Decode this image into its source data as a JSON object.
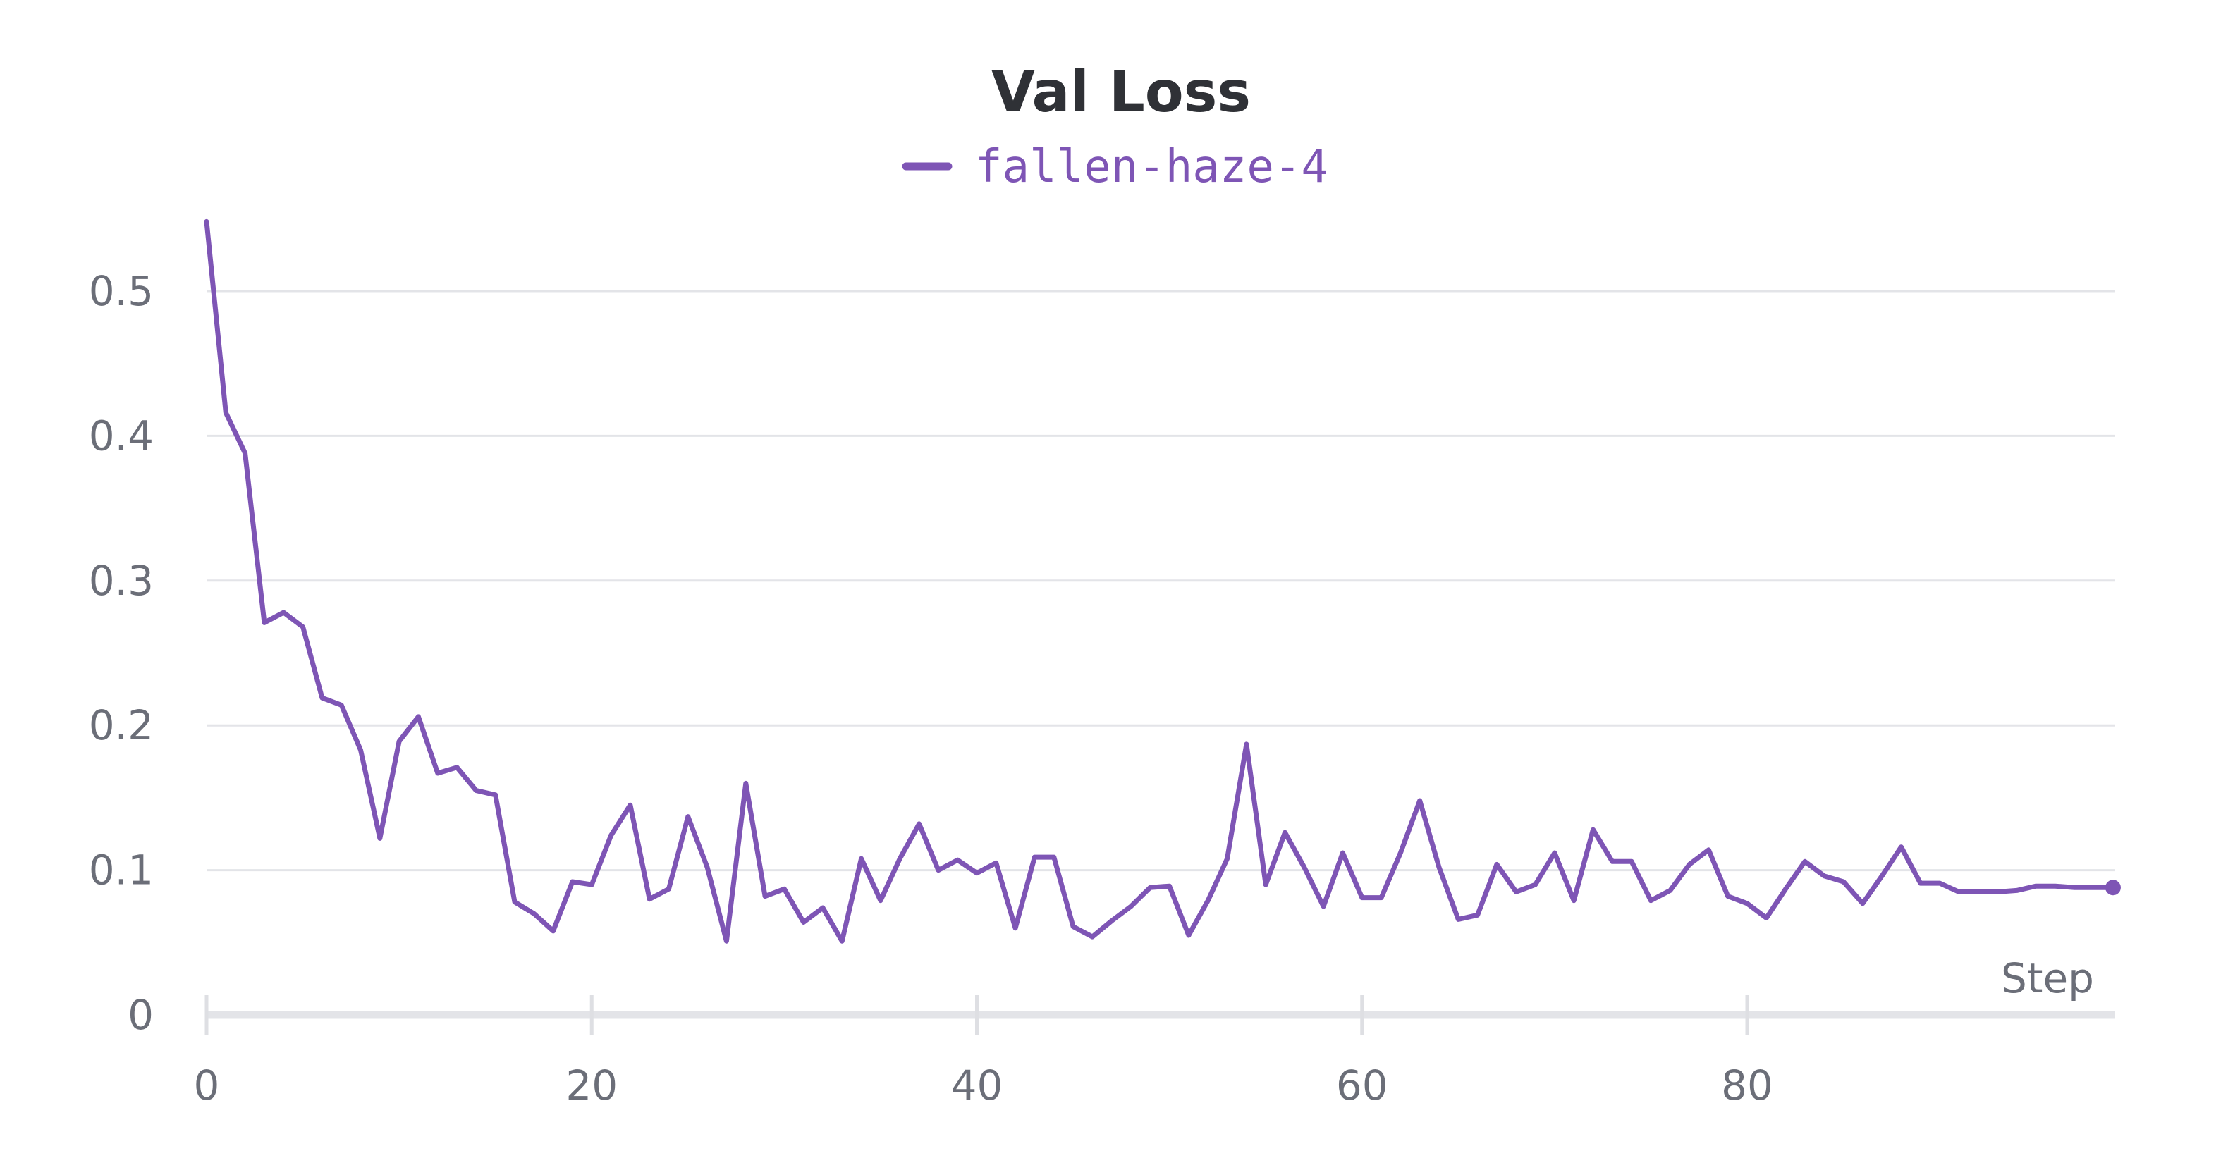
{
  "chart_data": {
    "type": "line",
    "title": "Val Loss",
    "xlabel": "Step",
    "ylabel": "",
    "xlim": [
      0,
      99
    ],
    "ylim": [
      0,
      0.55
    ],
    "x_ticks": [
      0,
      20,
      40,
      60,
      80
    ],
    "y_ticks": [
      0,
      0.1,
      0.2,
      0.3,
      0.4,
      0.5
    ],
    "y_tick_labels": [
      "0",
      "0.1",
      "0.2",
      "0.3",
      "0.4",
      "0.5"
    ],
    "x_tick_labels": [
      "0",
      "20",
      "40",
      "60",
      "80"
    ],
    "grid": true,
    "legend": "top-center",
    "series": [
      {
        "name": "fallen-haze-4",
        "color": "#7e55b5",
        "x": [
          0,
          1,
          2,
          3,
          4,
          5,
          6,
          7,
          8,
          9,
          10,
          11,
          12,
          13,
          14,
          15,
          16,
          17,
          18,
          19,
          20,
          21,
          22,
          23,
          24,
          25,
          26,
          27,
          28,
          29,
          30,
          31,
          32,
          33,
          34,
          35,
          36,
          37,
          38,
          39,
          40,
          41,
          42,
          43,
          44,
          45,
          46,
          47,
          48,
          49,
          50,
          51,
          52,
          53,
          54,
          55,
          56,
          57,
          58,
          59,
          60,
          61,
          62,
          63,
          64,
          65,
          66,
          67,
          68,
          69,
          70,
          71,
          72,
          73,
          74,
          75,
          76,
          77,
          78,
          79,
          80,
          81,
          82,
          83,
          84,
          85,
          86,
          87,
          88,
          89,
          90,
          91,
          92,
          93,
          94,
          95,
          96,
          97,
          98,
          99
        ],
        "values": [
          0.548,
          0.416,
          0.388,
          0.271,
          0.278,
          0.268,
          0.219,
          0.214,
          0.183,
          0.122,
          0.189,
          0.206,
          0.167,
          0.171,
          0.155,
          0.152,
          0.078,
          0.07,
          0.058,
          0.092,
          0.09,
          0.124,
          0.145,
          0.08,
          0.087,
          0.137,
          0.102,
          0.051,
          0.16,
          0.082,
          0.087,
          0.064,
          0.074,
          0.051,
          0.108,
          0.079,
          0.108,
          0.132,
          0.1,
          0.107,
          0.098,
          0.105,
          0.06,
          0.109,
          0.109,
          0.061,
          0.054,
          0.065,
          0.075,
          0.088,
          0.089,
          0.055,
          0.079,
          0.108,
          0.187,
          0.09,
          0.126,
          0.102,
          0.075,
          0.112,
          0.081,
          0.081,
          0.112,
          0.148,
          0.102,
          0.066,
          0.069,
          0.104,
          0.085,
          0.09,
          0.112,
          0.079,
          0.128,
          0.106,
          0.106,
          0.079,
          0.086,
          0.104,
          0.114,
          0.082,
          0.077,
          0.067,
          0.087,
          0.106,
          0.096,
          0.092,
          0.077,
          0.096,
          0.116,
          0.091,
          0.091,
          0.085,
          0.085,
          0.085,
          0.086,
          0.089,
          0.089,
          0.088,
          0.088,
          0.088
        ]
      }
    ]
  }
}
